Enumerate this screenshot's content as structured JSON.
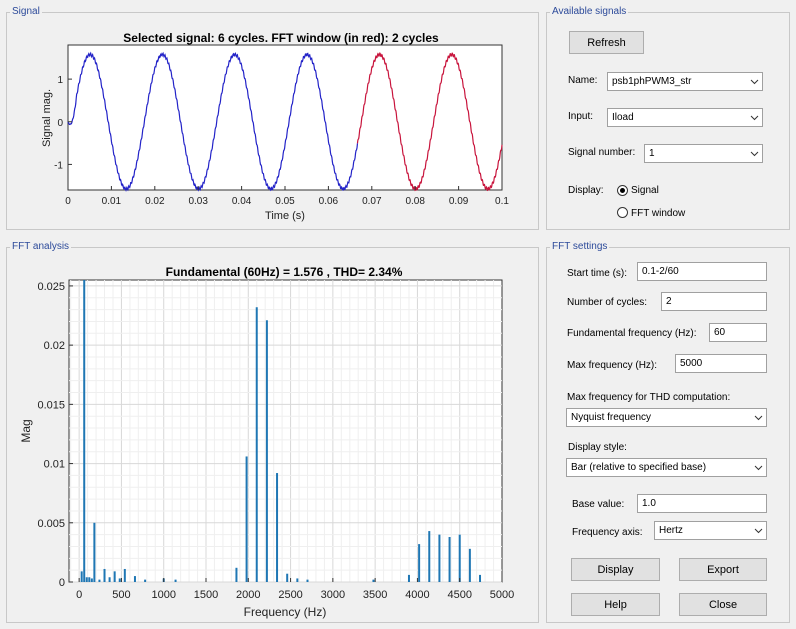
{
  "signal_panel": {
    "title": "Signal",
    "plot_title": "Selected signal: 6 cycles. FFT window (in red): 2 cycles",
    "ylabel": "Signal mag.",
    "xlabel": "Time (s)",
    "x_ticks": [
      "0",
      "0.01",
      "0.02",
      "0.03",
      "0.04",
      "0.05",
      "0.06",
      "0.07",
      "0.08",
      "0.09",
      "0.1"
    ],
    "y_ticks": [
      "1",
      "0",
      "-1"
    ],
    "colors": {
      "signal": "#2323c8",
      "fft_window": "#c8143c"
    }
  },
  "available_signals": {
    "title": "Available signals",
    "refresh_label": "Refresh",
    "name_label": "Name:",
    "name_value": "psb1phPWM3_str",
    "input_label": "Input:",
    "input_value": "Iload",
    "signal_number_label": "Signal number:",
    "signal_number_value": "1",
    "display_label": "Display:",
    "display_options": [
      {
        "label": "Signal",
        "selected": true
      },
      {
        "label": "FFT window",
        "selected": false
      }
    ]
  },
  "fft_analysis": {
    "title": "FFT analysis",
    "plot_title": "Fundamental (60Hz) = 1.576 , THD= 2.34%",
    "ylabel": "Mag",
    "xlabel": "Frequency (Hz)",
    "bar_color": "#1f77b4"
  },
  "fft_settings": {
    "title": "FFT settings",
    "start_time_label": "Start time (s):",
    "start_time_value": "0.1-2/60",
    "num_cycles_label": "Number of cycles:",
    "num_cycles_value": "2",
    "fund_freq_label": "Fundamental frequency (Hz):",
    "fund_freq_value": "60",
    "max_freq_label": "Max frequency (Hz):",
    "max_freq_value": "5000",
    "max_freq_thd_label": "Max frequency for THD computation:",
    "max_freq_thd_value": "Nyquist frequency",
    "display_style_label": "Display style:",
    "display_style_value": "Bar (relative to specified base)",
    "base_value_label": "Base value:",
    "base_value_value": "1.0",
    "freq_axis_label": "Frequency axis:",
    "freq_axis_value": "Hertz",
    "display_button": "Display",
    "export_button": "Export",
    "help_button": "Help",
    "close_button": "Close"
  },
  "chart_data": [
    {
      "type": "line",
      "title": "Selected signal: 6 cycles. FFT window (in red): 2 cycles",
      "xlabel": "Time (s)",
      "ylabel": "Signal mag.",
      "xlim": [
        0,
        0.1
      ],
      "ylim": [
        -1.6,
        1.8
      ],
      "x_ticks": [
        0,
        0.01,
        0.02,
        0.03,
        0.04,
        0.05,
        0.06,
        0.07,
        0.08,
        0.09,
        0.1
      ],
      "y_ticks": [
        -1,
        0,
        1
      ],
      "series": [
        {
          "frequency_hz": 60,
          "amplitude": 1.576,
          "phase_deg": -20,
          "t_start": 0,
          "t_end": 0.0667
        },
        {
          "frequency_hz": 60,
          "amplitude": 1.576,
          "phase_deg": -20,
          "t_start": 0.0667,
          "t_end": 0.1
        }
      ]
    },
    {
      "type": "bar",
      "title": "Fundamental (60Hz) = 1.576 , THD= 2.34%",
      "xlabel": "Frequency (Hz)",
      "ylabel": "Mag",
      "xlim": [
        -120,
        5000
      ],
      "ylim": [
        0,
        0.0255
      ],
      "x_ticks": [
        0,
        500,
        1000,
        1500,
        2000,
        2500,
        3000,
        3500,
        4000,
        4500,
        5000
      ],
      "y_ticks": [
        0,
        0.005,
        0.01,
        0.015,
        0.02,
        0.025
      ],
      "x_tick_labels": [
        "0",
        "500",
        "1000",
        "1500",
        "2000",
        "2500",
        "3000",
        "3500",
        "4000",
        "4500",
        "5000"
      ],
      "y_tick_labels": [
        "0",
        "0.005",
        "0.01",
        "0.015",
        "0.02",
        "0.025"
      ],
      "grid": true,
      "bars": [
        {
          "f": 30,
          "v": 0.0009
        },
        {
          "f": 60,
          "v": 0.026
        },
        {
          "f": 90,
          "v": 0.0004
        },
        {
          "f": 120,
          "v": 0.0004
        },
        {
          "f": 150,
          "v": 0.0003
        },
        {
          "f": 180,
          "v": 0.005
        },
        {
          "f": 240,
          "v": 0.0002
        },
        {
          "f": 300,
          "v": 0.0011
        },
        {
          "f": 360,
          "v": 0.0004
        },
        {
          "f": 420,
          "v": 0.0009
        },
        {
          "f": 480,
          "v": 0.0003
        },
        {
          "f": 540,
          "v": 0.0011
        },
        {
          "f": 660,
          "v": 0.0005
        },
        {
          "f": 780,
          "v": 0.0002
        },
        {
          "f": 1000,
          "v": 0.0003
        },
        {
          "f": 1140,
          "v": 0.0002
        },
        {
          "f": 1860,
          "v": 0.0012
        },
        {
          "f": 1980,
          "v": 0.0106
        },
        {
          "f": 2100,
          "v": 0.0232
        },
        {
          "f": 2220,
          "v": 0.0221
        },
        {
          "f": 2340,
          "v": 0.0092
        },
        {
          "f": 2460,
          "v": 0.0007
        },
        {
          "f": 2580,
          "v": 0.0003
        },
        {
          "f": 2700,
          "v": 0.0002
        },
        {
          "f": 3480,
          "v": 0.0002
        },
        {
          "f": 3900,
          "v": 0.0006
        },
        {
          "f": 4020,
          "v": 0.0032
        },
        {
          "f": 4140,
          "v": 0.0043
        },
        {
          "f": 4260,
          "v": 0.004
        },
        {
          "f": 4380,
          "v": 0.0038
        },
        {
          "f": 4500,
          "v": 0.004
        },
        {
          "f": 4620,
          "v": 0.0028
        },
        {
          "f": 4740,
          "v": 0.0006
        }
      ]
    }
  ]
}
